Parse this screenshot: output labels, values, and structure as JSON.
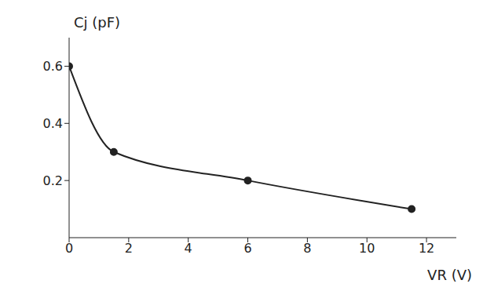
{
  "chart_data": {
    "type": "line",
    "x_label": "VR (V)",
    "y_label": "Cj (pF)",
    "x": [
      0,
      1.5,
      6,
      11.5
    ],
    "values": [
      0.6,
      0.3,
      0.2,
      0.1
    ],
    "color": "#222222",
    "marker": "circle",
    "line_style": "solid",
    "xlim": [
      0,
      13
    ],
    "xticks": [
      0,
      2,
      4,
      6,
      8,
      10,
      12
    ],
    "ylim": [
      0,
      0.7
    ],
    "yticks": [
      0.2,
      0.4,
      0.6
    ],
    "grid": false
  }
}
